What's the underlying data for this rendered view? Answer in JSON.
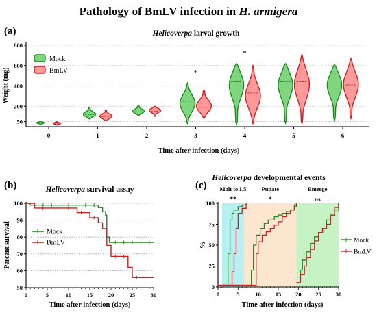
{
  "figure": {
    "title_prefix": "Pathology of BmLV infection in ",
    "title_italic": "H. armigera",
    "colors": {
      "mock": "#1a8a1a",
      "mock_fill": "#7fd67f",
      "bmlv": "#cc2020",
      "bmlv_fill": "#ff9a9a"
    }
  },
  "chart_data": [
    {
      "id": "a",
      "panel_label": "(a)",
      "type": "violin",
      "title": "Helicoverpa larval growth",
      "title_italic_part": "Helicoverpa",
      "title_rest": " larval growth",
      "xlabel": "Time after infection (days)",
      "ylabel": "Weight (mg)",
      "ylim": [
        0,
        800
      ],
      "yticks": [
        50,
        200,
        400,
        600,
        800
      ],
      "categories": [
        "0",
        "1",
        "2",
        "3",
        "4",
        "5",
        "6"
      ],
      "legend": [
        "Mock",
        "BmLV"
      ],
      "legend_position": "top-left",
      "significance": [
        {
          "category": "3",
          "label": "*"
        },
        {
          "category": "4",
          "label": "*"
        }
      ],
      "series": [
        {
          "name": "Mock",
          "min": [
            20,
            75,
            110,
            30,
            20,
            35,
            60
          ],
          "max": [
            55,
            190,
            210,
            430,
            620,
            620,
            610
          ],
          "median": [
            38,
            120,
            145,
            250,
            440,
            440,
            400
          ],
          "mode": [
            38,
            120,
            150,
            230,
            420,
            420,
            420
          ]
        },
        {
          "name": "BmLV",
          "min": [
            15,
            55,
            100,
            80,
            30,
            30,
            80
          ],
          "max": [
            50,
            165,
            200,
            360,
            600,
            710,
            670
          ],
          "median": [
            32,
            100,
            150,
            190,
            330,
            440,
            410
          ],
          "mode": [
            32,
            100,
            160,
            200,
            300,
            420,
            420
          ]
        }
      ]
    },
    {
      "id": "b",
      "panel_label": "(b)",
      "type": "line",
      "subtype": "kaplan-meier",
      "title": "Helicoverpa survival assay",
      "title_italic_part": "Helicoverpa",
      "title_rest": " survival assay",
      "xlabel": "Time after infection (days)",
      "ylabel": "Percent survival",
      "xlim": [
        0,
        30
      ],
      "ylim": [
        50,
        100
      ],
      "xticks": [
        0,
        5,
        10,
        15,
        20,
        25,
        30
      ],
      "yticks": [
        50,
        60,
        70,
        80,
        90,
        100
      ],
      "legend": [
        "Mock",
        "BmLV"
      ],
      "legend_position": "left-middle",
      "series": [
        {
          "name": "Mock",
          "steps": [
            [
              0,
              100
            ],
            [
              1,
              98.9
            ],
            [
              17,
              97.5
            ],
            [
              18,
              95
            ],
            [
              18.7,
              93
            ],
            [
              19,
              80
            ],
            [
              19.6,
              76.8
            ],
            [
              30,
              76.8
            ]
          ],
          "censor_x": [
            2,
            4,
            6,
            8,
            10,
            12,
            14,
            16,
            21,
            23,
            25,
            27,
            29
          ]
        },
        {
          "name": "BmLV",
          "steps": [
            [
              0,
              100
            ],
            [
              2,
              97.2
            ],
            [
              12,
              94.5
            ],
            [
              15,
              91.5
            ],
            [
              17,
              88.5
            ],
            [
              18,
              85
            ],
            [
              19,
              75
            ],
            [
              20,
              68.5
            ],
            [
              24,
              62
            ],
            [
              25,
              56
            ],
            [
              30,
              56
            ]
          ],
          "censor_x": [
            4,
            7,
            10,
            13,
            16,
            21,
            23,
            26,
            28
          ]
        }
      ]
    },
    {
      "id": "c",
      "panel_label": "(c)",
      "type": "line",
      "subtype": "cumulative-step",
      "title": "Helicoverpa developmental events",
      "title_italic_part": "Helicoverpa",
      "title_rest": " developmental events",
      "xlabel": "Time after infection (days)",
      "ylabel": "%",
      "xlim": [
        0,
        30
      ],
      "ylim": [
        0,
        100
      ],
      "xticks": [
        0,
        5,
        10,
        15,
        20,
        25,
        30
      ],
      "yticks": [
        0,
        25,
        50,
        75,
        100
      ],
      "legend": [
        "Mock",
        "BmLV"
      ],
      "legend_position": "right",
      "regions": [
        {
          "label": "Molt to L5",
          "x": [
            1,
            6.5
          ],
          "color": "#b8f0f2",
          "sig": "**"
        },
        {
          "label": "Pupate",
          "x": [
            6.5,
            19.5
          ],
          "color": "#fde6cf",
          "sig": "*"
        },
        {
          "label": "Emerge",
          "x": [
            19.5,
            30
          ],
          "color": "#c6f2c6",
          "sig": "ns"
        }
      ],
      "series": [
        {
          "name": "Mock",
          "curves": [
            [
              [
                1,
                2
              ],
              [
                2,
                2
              ],
              [
                2.5,
                40
              ],
              [
                3,
                80
              ],
              [
                3.5,
                88
              ],
              [
                4,
                92
              ],
              [
                5,
                96
              ],
              [
                6,
                98
              ],
              [
                7,
                100
              ]
            ],
            [
              [
                0,
                2
              ],
              [
                8,
                2
              ],
              [
                8.3,
                20
              ],
              [
                8.8,
                50
              ],
              [
                9.5,
                62
              ],
              [
                10.5,
                70
              ],
              [
                11.5,
                76
              ],
              [
                12.5,
                80
              ],
              [
                14,
                84
              ],
              [
                15,
                86
              ],
              [
                16,
                88
              ],
              [
                17,
                90
              ],
              [
                18,
                92
              ],
              [
                19,
                96
              ],
              [
                19.5,
                100
              ]
            ],
            [
              [
                19.5,
                5
              ],
              [
                20.5,
                20
              ],
              [
                21,
                32
              ],
              [
                22,
                42
              ],
              [
                23,
                52
              ],
              [
                24,
                60
              ],
              [
                25,
                65
              ],
              [
                26,
                70
              ],
              [
                27,
                80
              ],
              [
                28,
                86
              ],
              [
                29,
                92
              ],
              [
                30,
                100
              ]
            ]
          ]
        },
        {
          "name": "BmLV",
          "curves": [
            [
              [
                1,
                2
              ],
              [
                3,
                2
              ],
              [
                3.5,
                18
              ],
              [
                4,
                40
              ],
              [
                4.5,
                70
              ],
              [
                5,
                88
              ],
              [
                6,
                94
              ],
              [
                7,
                100
              ]
            ],
            [
              [
                0,
                2
              ],
              [
                9,
                2
              ],
              [
                9.5,
                40
              ],
              [
                10,
                54
              ],
              [
                11,
                62
              ],
              [
                12,
                66
              ],
              [
                13,
                70
              ],
              [
                14,
                74
              ],
              [
                15,
                78
              ],
              [
                16,
                84
              ],
              [
                17,
                88
              ],
              [
                18,
                92
              ],
              [
                19,
                98
              ],
              [
                19.5,
                100
              ]
            ],
            [
              [
                19.5,
                5
              ],
              [
                20.5,
                15
              ],
              [
                21.5,
                25
              ],
              [
                22,
                35
              ],
              [
                23,
                45
              ],
              [
                24,
                55
              ],
              [
                25,
                65
              ],
              [
                26,
                70
              ],
              [
                27,
                75
              ],
              [
                28,
                85
              ],
              [
                29,
                95
              ],
              [
                30,
                100
              ]
            ]
          ]
        }
      ]
    }
  ]
}
